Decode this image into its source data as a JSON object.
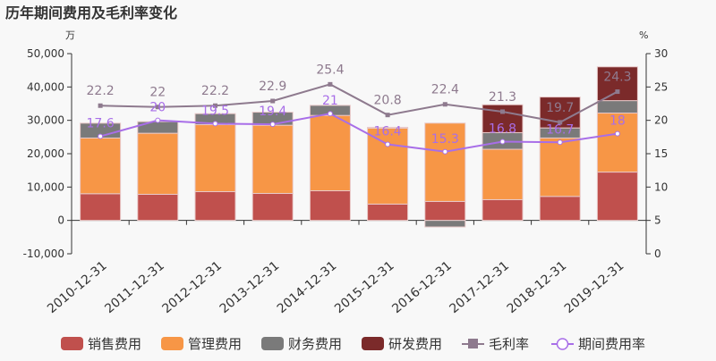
{
  "chart_data": {
    "type": "bar",
    "title": "历年期间费用及毛利率变化",
    "y_left_unit": "万",
    "y_right_unit": "%",
    "ylim_left": [
      -10000,
      50000
    ],
    "ylim_right": [
      0,
      30
    ],
    "y_left_ticks": [
      "-10,000",
      "0",
      "10,000",
      "20,000",
      "30,000",
      "40,000",
      "50,000"
    ],
    "y_right_ticks": [
      "0",
      "5",
      "10",
      "15",
      "20",
      "25",
      "30"
    ],
    "grid": false,
    "legend_position": "bottom",
    "categories": [
      "2010-12-31",
      "2011-12-31",
      "2012-12-31",
      "2013-12-31",
      "2014-12-31",
      "2015-12-31",
      "2016-12-31",
      "2017-12-31",
      "2018-12-31",
      "2019-12-31"
    ],
    "bar_series": [
      {
        "name": "销售费用",
        "color": "#c0504d",
        "values": [
          8000,
          7820,
          8620,
          8090,
          8890,
          4890,
          5690,
          6220,
          7200,
          14490
        ]
      },
      {
        "name": "管理费用",
        "color": "#f79646",
        "values": [
          16700,
          18310,
          20080,
          20440,
          22580,
          22760,
          23470,
          15110,
          17510,
          17690
        ]
      },
      {
        "name": "财务费用",
        "color": "#7a7a7a",
        "values": [
          4450,
          3470,
          3300,
          3910,
          3020,
          260,
          -1960,
          4980,
          3020,
          3730
        ]
      },
      {
        "name": "研发费用",
        "color": "#7b2a2a",
        "values": [
          0,
          0,
          0,
          0,
          0,
          0,
          0,
          8360,
          9250,
          10130
        ]
      }
    ],
    "line_series": [
      {
        "name": "毛利率",
        "color": "#8e7a8e",
        "marker": "square",
        "values": [
          22.2,
          22,
          22.2,
          22.9,
          25.4,
          20.8,
          22.4,
          21.3,
          19.7,
          24.3
        ]
      },
      {
        "name": "期间费用率",
        "color": "#a86ee8",
        "marker": "circle",
        "values": [
          17.6,
          20,
          19.5,
          19.4,
          21,
          16.4,
          15.3,
          16.8,
          16.7,
          18
        ]
      }
    ]
  }
}
